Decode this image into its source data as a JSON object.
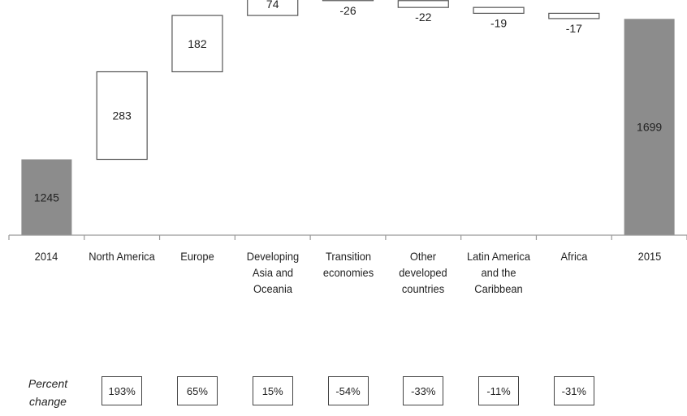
{
  "chart_data": {
    "type": "bar",
    "subtype": "waterfall",
    "categories": [
      "2014",
      "North America",
      "Europe",
      "Developing\nAsia and\nOceania",
      "Transition\neconomies",
      "Other\ndeveloped\ncountries",
      "Latin America\nand the\nCaribbean",
      "Africa",
      "2015"
    ],
    "values": [
      1245,
      283,
      182,
      74,
      -26,
      -22,
      -19,
      -17,
      1699
    ],
    "value_labels": [
      "1245",
      "283",
      "182",
      "74",
      "-26",
      "-22",
      "-19",
      "-17",
      "1699"
    ],
    "bar_kinds": [
      "total",
      "change",
      "change",
      "change",
      "change",
      "change",
      "change",
      "change",
      "total"
    ],
    "ylim": [
      1000,
      1760
    ],
    "grid": false,
    "colors": {
      "total": "#8c8c8c",
      "change_fill": "#ffffff",
      "change_stroke": "#555555",
      "axis": "#999999"
    }
  },
  "percent_change": {
    "title": "Percent\nchange",
    "values": [
      "193%",
      "65%",
      "15%",
      "-54%",
      "-33%",
      "-11%",
      "-31%"
    ]
  }
}
